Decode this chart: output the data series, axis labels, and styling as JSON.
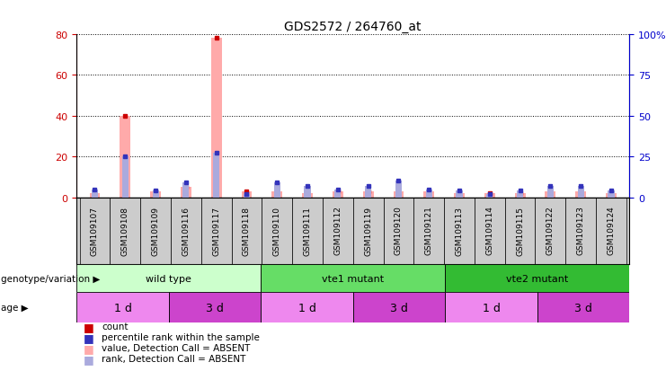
{
  "title": "GDS2572 / 264760_at",
  "samples": [
    "GSM109107",
    "GSM109108",
    "GSM109109",
    "GSM109116",
    "GSM109117",
    "GSM109118",
    "GSM109110",
    "GSM109111",
    "GSM109112",
    "GSM109119",
    "GSM109120",
    "GSM109121",
    "GSM109113",
    "GSM109114",
    "GSM109115",
    "GSM109122",
    "GSM109123",
    "GSM109124"
  ],
  "count_values": [
    2,
    40,
    3,
    5,
    78,
    3,
    3,
    2,
    3,
    3,
    3,
    3,
    2,
    2,
    2,
    3,
    3,
    2
  ],
  "rank_values": [
    5,
    25,
    4,
    9,
    27,
    2,
    9,
    7,
    5,
    7,
    10,
    5,
    4,
    2,
    4,
    7,
    7,
    4
  ],
  "all_absent": [
    true,
    true,
    true,
    true,
    true,
    true,
    true,
    true,
    true,
    true,
    true,
    true,
    true,
    true,
    true,
    true,
    true,
    true
  ],
  "ylim_left": [
    0,
    80
  ],
  "ylim_right": [
    0,
    100
  ],
  "yticks_left": [
    0,
    20,
    40,
    60,
    80
  ],
  "yticks_right": [
    0,
    25,
    50,
    75,
    100
  ],
  "genotype_groups": [
    {
      "label": "wild type",
      "start": 0,
      "end": 6,
      "color": "#ccffcc"
    },
    {
      "label": "vte1 mutant",
      "start": 6,
      "end": 12,
      "color": "#66dd66"
    },
    {
      "label": "vte2 mutant",
      "start": 12,
      "end": 18,
      "color": "#33bb33"
    }
  ],
  "age_groups": [
    {
      "label": "1 d",
      "start": 0,
      "end": 3,
      "color": "#ee88ee"
    },
    {
      "label": "3 d",
      "start": 3,
      "end": 6,
      "color": "#cc44cc"
    },
    {
      "label": "1 d",
      "start": 6,
      "end": 9,
      "color": "#ee88ee"
    },
    {
      "label": "3 d",
      "start": 9,
      "end": 12,
      "color": "#cc44cc"
    },
    {
      "label": "1 d",
      "start": 12,
      "end": 15,
      "color": "#ee88ee"
    },
    {
      "label": "3 d",
      "start": 15,
      "end": 18,
      "color": "#cc44cc"
    }
  ],
  "count_color": "#ffaaaa",
  "rank_color": "#aaaadd",
  "count_marker_color": "#cc0000",
  "rank_marker_color": "#3333bb",
  "bg_color": "#ffffff",
  "plot_bg": "#ffffff",
  "ylabel_left_color": "#cc0000",
  "ylabel_right_color": "#0000cc",
  "xtick_bg": "#cccccc",
  "genotype_label": "genotype/variation",
  "age_label": "age",
  "legend_items": [
    {
      "label": "count",
      "color": "#cc0000"
    },
    {
      "label": "percentile rank within the sample",
      "color": "#3333bb"
    },
    {
      "label": "value, Detection Call = ABSENT",
      "color": "#ffaaaa"
    },
    {
      "label": "rank, Detection Call = ABSENT",
      "color": "#aaaadd"
    }
  ]
}
